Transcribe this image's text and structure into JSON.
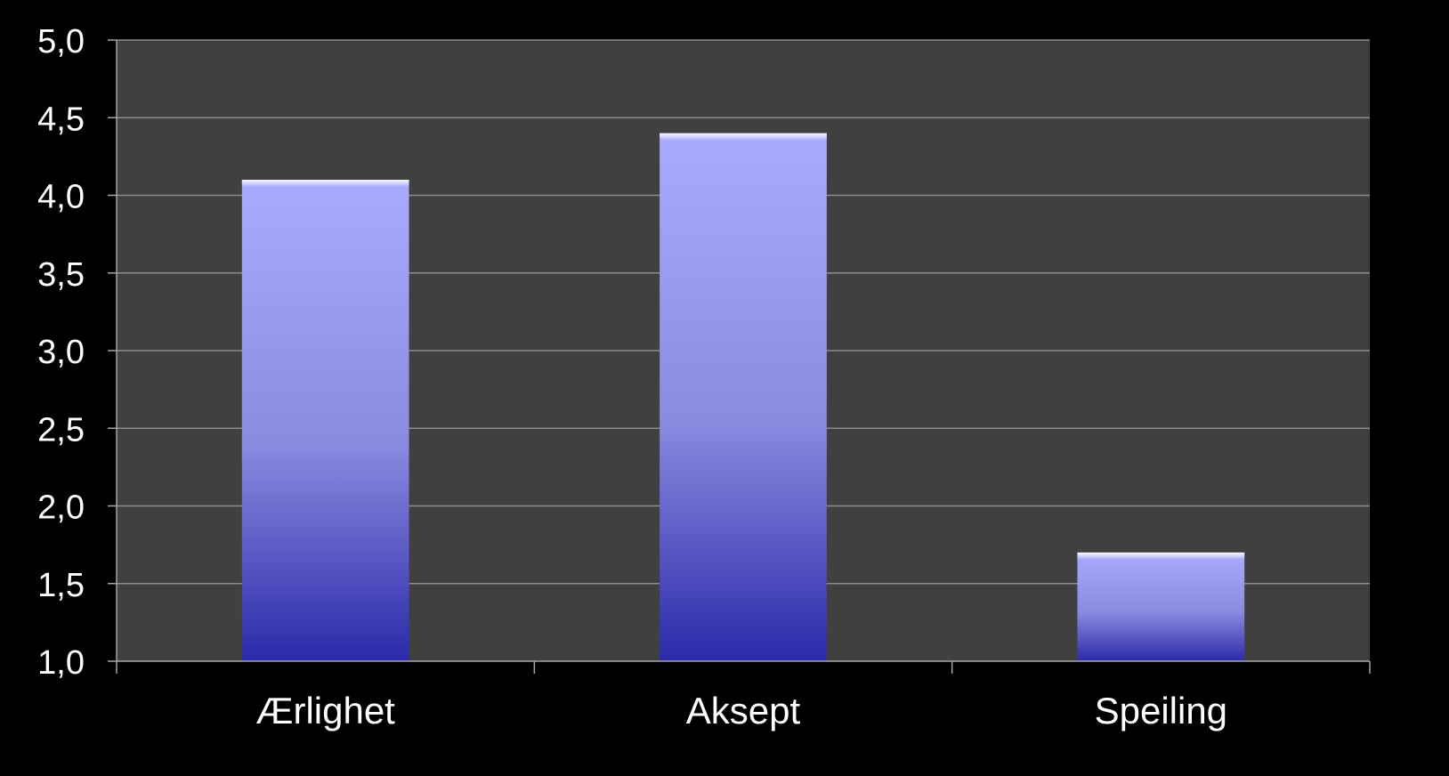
{
  "chart_data": {
    "type": "bar",
    "categories": [
      "Ærlighet",
      "Aksept",
      "Speiling"
    ],
    "values": [
      4.1,
      4.4,
      1.7
    ],
    "ylim": [
      1.0,
      5.0
    ],
    "yticks": [
      "1,0",
      "1,5",
      "2,0",
      "2,5",
      "3,0",
      "3,5",
      "4,0",
      "4,5",
      "5,0"
    ],
    "grid": true,
    "legend": "none",
    "title": "",
    "xlabel": "",
    "ylabel": ""
  },
  "colors": {
    "page_background": "#000000",
    "plot_background": "#404040",
    "gridline": "#8c8c8c",
    "axis": "#a6a6a6",
    "text": "#ffffff",
    "bar_top": "#aaaaff",
    "bar_mid": "#8a8ae0",
    "bar_bottom": "#2a2aaa"
  }
}
